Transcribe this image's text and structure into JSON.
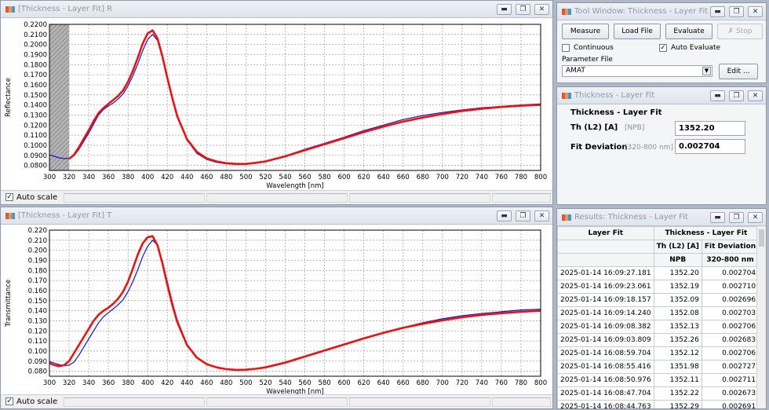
{
  "colors": {
    "measured": "#1414c8",
    "fitted": "#e81414",
    "hatch": "#8c8c8c"
  },
  "chart_r": {
    "window_title": "[Thickness - Layer Fit] R",
    "auto_scale": "Auto scale",
    "chart_data": {
      "type": "line",
      "xlabel": "Wavelength [nm]",
      "ylabel": "Reflectance",
      "xlim": [
        300,
        800
      ],
      "ylim": [
        0.075,
        0.22
      ],
      "x_ticks": [
        "300",
        "320",
        "340",
        "360",
        "380",
        "400",
        "420",
        "440",
        "460",
        "480",
        "500",
        "520",
        "540",
        "560",
        "580",
        "600",
        "620",
        "640",
        "660",
        "680",
        "700",
        "720",
        "740",
        "760",
        "780",
        "800"
      ],
      "y_ticks": [
        "0.0800",
        "0.0900",
        "0.1000",
        "0.1100",
        "0.1200",
        "0.1300",
        "0.1400",
        "0.1500",
        "0.1600",
        "0.1700",
        "0.1800",
        "0.1900",
        "0.2000",
        "0.2100",
        "0.2200"
      ],
      "grid": true,
      "shaded_range": [
        300,
        320
      ],
      "series": [
        {
          "x": [
            300,
            305,
            310,
            315,
            320,
            325,
            330,
            335,
            340,
            345,
            350,
            355,
            360,
            365,
            370,
            375,
            380,
            385,
            390,
            395,
            400,
            405,
            410,
            415,
            420,
            425,
            430,
            440,
            450,
            460,
            470,
            480,
            490,
            500,
            510,
            520,
            540,
            560,
            580,
            600,
            620,
            640,
            660,
            680,
            700,
            720,
            740,
            760,
            780,
            800
          ],
          "y": [
            0.0905,
            0.089,
            0.0875,
            0.0868,
            0.087,
            0.0895,
            0.096,
            0.104,
            0.112,
            0.121,
            0.13,
            0.1355,
            0.139,
            0.142,
            0.146,
            0.151,
            0.159,
            0.169,
            0.181,
            0.194,
            0.205,
            0.21,
            0.204,
            0.187,
            0.166,
            0.146,
            0.128,
            0.105,
            0.092,
            0.086,
            0.083,
            0.0815,
            0.081,
            0.0812,
            0.0825,
            0.084,
            0.0895,
            0.096,
            0.102,
            0.108,
            0.1145,
            0.12,
            0.1255,
            0.1295,
            0.1325,
            0.135,
            0.1372,
            0.1385,
            0.14,
            0.141
          ]
        },
        {
          "x": [
            320,
            325,
            330,
            335,
            340,
            345,
            350,
            355,
            360,
            365,
            370,
            375,
            380,
            385,
            390,
            395,
            400,
            405,
            410,
            415,
            420,
            425,
            430,
            440,
            450,
            460,
            470,
            480,
            490,
            500,
            510,
            520,
            540,
            560,
            580,
            600,
            620,
            640,
            660,
            680,
            700,
            720,
            740,
            760,
            780,
            800
          ],
          "y": [
            0.0865,
            0.0905,
            0.098,
            0.1065,
            0.115,
            0.124,
            0.132,
            0.137,
            0.141,
            0.145,
            0.149,
            0.1545,
            0.163,
            0.174,
            0.187,
            0.201,
            0.211,
            0.214,
            0.206,
            0.188,
            0.167,
            0.147,
            0.129,
            0.106,
            0.0935,
            0.087,
            0.084,
            0.0822,
            0.0815,
            0.0815,
            0.0826,
            0.084,
            0.089,
            0.095,
            0.101,
            0.107,
            0.113,
            0.1185,
            0.1235,
            0.1275,
            0.131,
            0.134,
            0.1362,
            0.138,
            0.1392,
            0.1402
          ]
        }
      ]
    }
  },
  "chart_t": {
    "window_title": "[Thickness - Layer Fit] T",
    "auto_scale": "Auto scale",
    "chart_data": {
      "type": "line",
      "xlabel": "Wavelength [nm]",
      "ylabel": "Transmittance",
      "xlim": [
        300,
        800
      ],
      "ylim": [
        0.075,
        0.22
      ],
      "x_ticks": [
        "300",
        "320",
        "340",
        "360",
        "380",
        "400",
        "420",
        "440",
        "460",
        "480",
        "500",
        "520",
        "540",
        "560",
        "580",
        "600",
        "620",
        "640",
        "660",
        "680",
        "700",
        "720",
        "740",
        "760",
        "780",
        "800"
      ],
      "y_ticks": [
        "0.080",
        "0.090",
        "0.100",
        "0.110",
        "0.120",
        "0.130",
        "0.140",
        "0.150",
        "0.160",
        "0.170",
        "0.180",
        "0.190",
        "0.200",
        "0.210",
        "0.220"
      ],
      "grid": true,
      "series": [
        {
          "x": [
            300,
            305,
            310,
            315,
            320,
            325,
            330,
            335,
            340,
            345,
            350,
            355,
            360,
            365,
            370,
            375,
            380,
            385,
            390,
            395,
            400,
            405,
            410,
            415,
            420,
            425,
            430,
            440,
            450,
            460,
            470,
            480,
            490,
            500,
            510,
            520,
            540,
            560,
            580,
            600,
            620,
            640,
            660,
            680,
            700,
            720,
            740,
            760,
            780,
            800
          ],
          "y": [
            0.0895,
            0.088,
            0.0865,
            0.0855,
            0.086,
            0.089,
            0.096,
            0.104,
            0.112,
            0.12,
            0.128,
            0.134,
            0.138,
            0.142,
            0.146,
            0.151,
            0.159,
            0.169,
            0.181,
            0.194,
            0.204,
            0.21,
            0.205,
            0.189,
            0.169,
            0.149,
            0.131,
            0.107,
            0.094,
            0.087,
            0.0835,
            0.0818,
            0.0812,
            0.0815,
            0.0825,
            0.084,
            0.089,
            0.095,
            0.101,
            0.107,
            0.113,
            0.1185,
            0.1235,
            0.128,
            0.132,
            0.135,
            0.1372,
            0.139,
            0.1408,
            0.1415
          ]
        },
        {
          "x": [
            300,
            305,
            310,
            315,
            320,
            325,
            330,
            335,
            340,
            345,
            350,
            355,
            360,
            365,
            370,
            375,
            380,
            385,
            390,
            395,
            400,
            405,
            410,
            415,
            420,
            425,
            430,
            440,
            450,
            460,
            470,
            480,
            490,
            500,
            510,
            520,
            540,
            560,
            580,
            600,
            620,
            640,
            660,
            680,
            700,
            720,
            740,
            760,
            780,
            800
          ],
          "y": [
            0.088,
            0.086,
            0.085,
            0.086,
            0.09,
            0.098,
            0.106,
            0.114,
            0.122,
            0.13,
            0.136,
            0.14,
            0.143,
            0.147,
            0.152,
            0.159,
            0.169,
            0.182,
            0.196,
            0.207,
            0.213,
            0.214,
            0.205,
            0.187,
            0.166,
            0.146,
            0.129,
            0.106,
            0.0935,
            0.087,
            0.0838,
            0.082,
            0.0813,
            0.0815,
            0.0824,
            0.0838,
            0.0885,
            0.0945,
            0.1005,
            0.1065,
            0.1125,
            0.118,
            0.123,
            0.127,
            0.1305,
            0.1335,
            0.1358,
            0.1375,
            0.139,
            0.14
          ]
        }
      ]
    }
  },
  "tool_window": {
    "title": "Tool Window: Thickness - Layer Fit",
    "measure": "Measure",
    "load_file": "Load File",
    "evaluate": "Evaluate",
    "stop": "Stop",
    "continuous": "Continuous",
    "auto_evaluate": "Auto Evaluate",
    "parameter_file_label": "Parameter File",
    "parameter_file_value": "AMAT",
    "edit": "Edit ..."
  },
  "layer_fit": {
    "title": "Thickness - Layer Fit",
    "heading": "Thickness - Layer Fit",
    "th_label": "Th (L2) [A]",
    "th_unit": "[NPB]",
    "th_value": "1352.20",
    "fd_label": "Fit Deviation",
    "fd_unit": "[320-800 nm]",
    "fd_value": "0.002704"
  },
  "results": {
    "title": "Results: Thickness - Layer Fit",
    "col_header_1": "Layer Fit",
    "col_header_group": "Thickness - Layer Fit",
    "col_th": "Th (L2) [A]",
    "col_fd": "Fit Deviation",
    "unit_th": "NPB",
    "unit_fd": "320-800 nm",
    "rows": [
      {
        "time": "2025-01-14 16:09:27.181",
        "th": "1352.20",
        "fd": "0.002704"
      },
      {
        "time": "2025-01-14 16:09:23.061",
        "th": "1352.19",
        "fd": "0.002710"
      },
      {
        "time": "2025-01-14 16:09:18.157",
        "th": "1352.09",
        "fd": "0.002696"
      },
      {
        "time": "2025-01-14 16:09:14.240",
        "th": "1352.08",
        "fd": "0.002703"
      },
      {
        "time": "2025-01-14 16:09:08.382",
        "th": "1352.13",
        "fd": "0.002706"
      },
      {
        "time": "2025-01-14 16:09:03.809",
        "th": "1352.26",
        "fd": "0.002683"
      },
      {
        "time": "2025-01-14 16:08:59.704",
        "th": "1352.12",
        "fd": "0.002706"
      },
      {
        "time": "2025-01-14 16:08:55.416",
        "th": "1351.98",
        "fd": "0.002727"
      },
      {
        "time": "2025-01-14 16:08:50.976",
        "th": "1352.11",
        "fd": "0.002711"
      },
      {
        "time": "2025-01-14 16:08:47.704",
        "th": "1352.22",
        "fd": "0.002673"
      },
      {
        "time": "2025-01-14 16:08:44.763",
        "th": "1352.29",
        "fd": "0.002691"
      }
    ]
  },
  "icons": {
    "minimize": "minimize-icon",
    "restore": "restore-icon",
    "close": "close-icon"
  }
}
